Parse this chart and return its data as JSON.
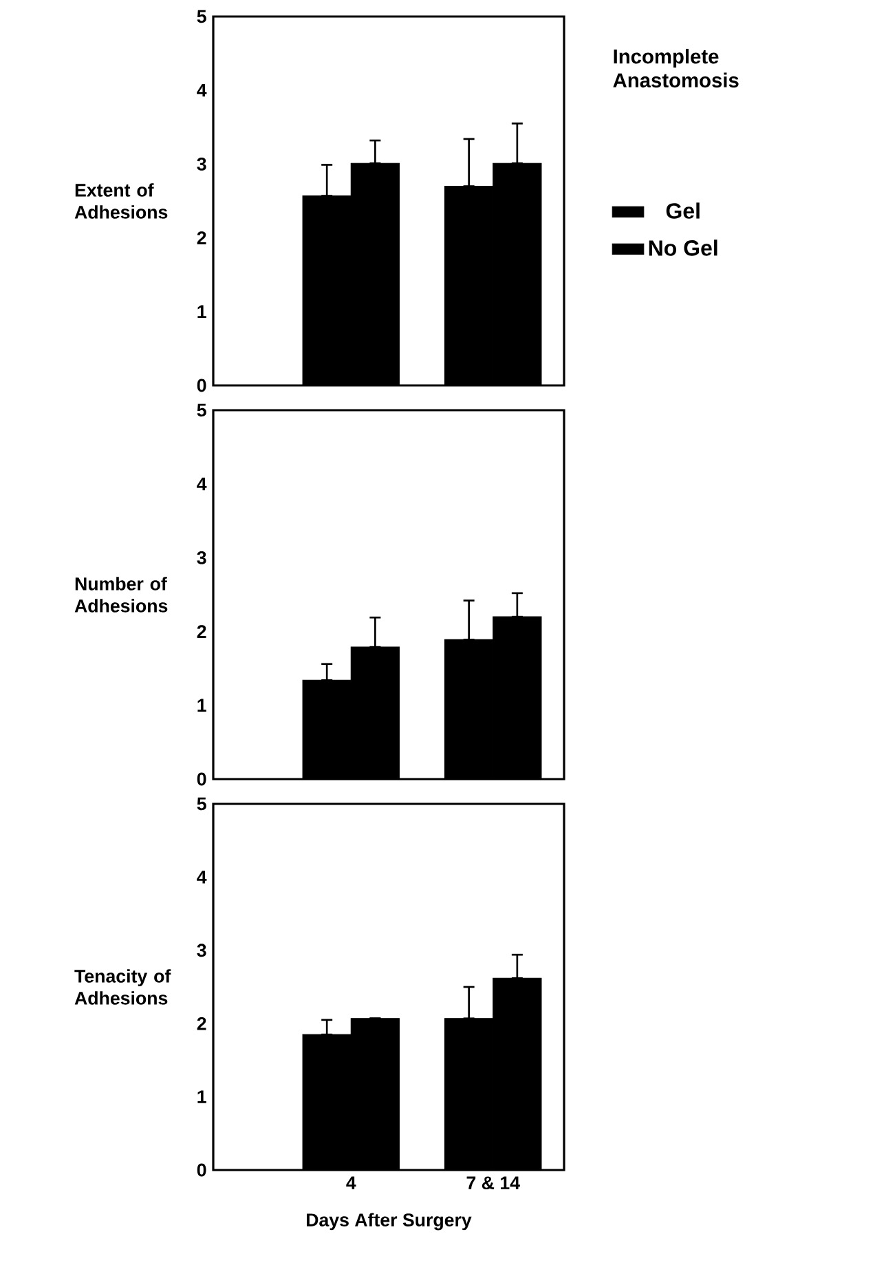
{
  "chart_data": [
    {
      "type": "bar",
      "legend_title": "Incomplete Anastomosis",
      "ylabel": "Extent of Adhesions",
      "categories": [
        null,
        null
      ],
      "series": [
        {
          "name": "Gel",
          "color": "#000000",
          "values": [
            2.57,
            2.7
          ],
          "errors": [
            [
              2.57,
              2.99
            ],
            [
              2.7,
              3.34
            ]
          ]
        },
        {
          "name": "No Gel",
          "color": "#000000",
          "values": [
            3.01,
            3.01
          ],
          "errors": [
            [
              3.01,
              3.32
            ],
            [
              3.01,
              3.55
            ]
          ]
        }
      ],
      "ylim": [
        0,
        5
      ],
      "yticks": [
        0,
        1,
        2,
        3,
        4,
        5
      ],
      "legend": "right",
      "tick_labels": "y",
      "grid": false
    },
    {
      "type": "bar",
      "ylabel": "Number of Adhesions",
      "categories": [
        null,
        null
      ],
      "series": [
        {
          "color": "#000000",
          "values": [
            1.34,
            1.89
          ],
          "errors": [
            [
              1.34,
              1.56
            ],
            [
              1.89,
              2.42
            ]
          ]
        },
        {
          "color": "#000000",
          "values": [
            1.79,
            2.2
          ],
          "errors": [
            [
              1.79,
              2.19
            ],
            [
              2.2,
              2.52
            ]
          ]
        }
      ],
      "ylim": [
        0,
        5
      ],
      "yticks": [
        0,
        1,
        2,
        3,
        4,
        5
      ],
      "tick_labels": "y",
      "grid": false
    },
    {
      "type": "bar",
      "ylabel": "Tenacity of Adhesions",
      "xlabel": "Days After Surgery",
      "categories": [
        "4",
        "7 & 14"
      ],
      "series": [
        {
          "color": "#000000",
          "values": [
            1.85,
            2.07
          ],
          "errors": [
            [
              1.85,
              2.05
            ],
            [
              2.07,
              2.5
            ]
          ]
        },
        {
          "color": "#000000",
          "values": [
            2.07,
            2.62
          ],
          "errors": [
            null,
            [
              2.62,
              2.94
            ]
          ]
        }
      ],
      "ylim": [
        0,
        5
      ],
      "yticks": [
        0,
        1,
        2,
        3,
        4,
        5
      ],
      "grid": false
    }
  ]
}
